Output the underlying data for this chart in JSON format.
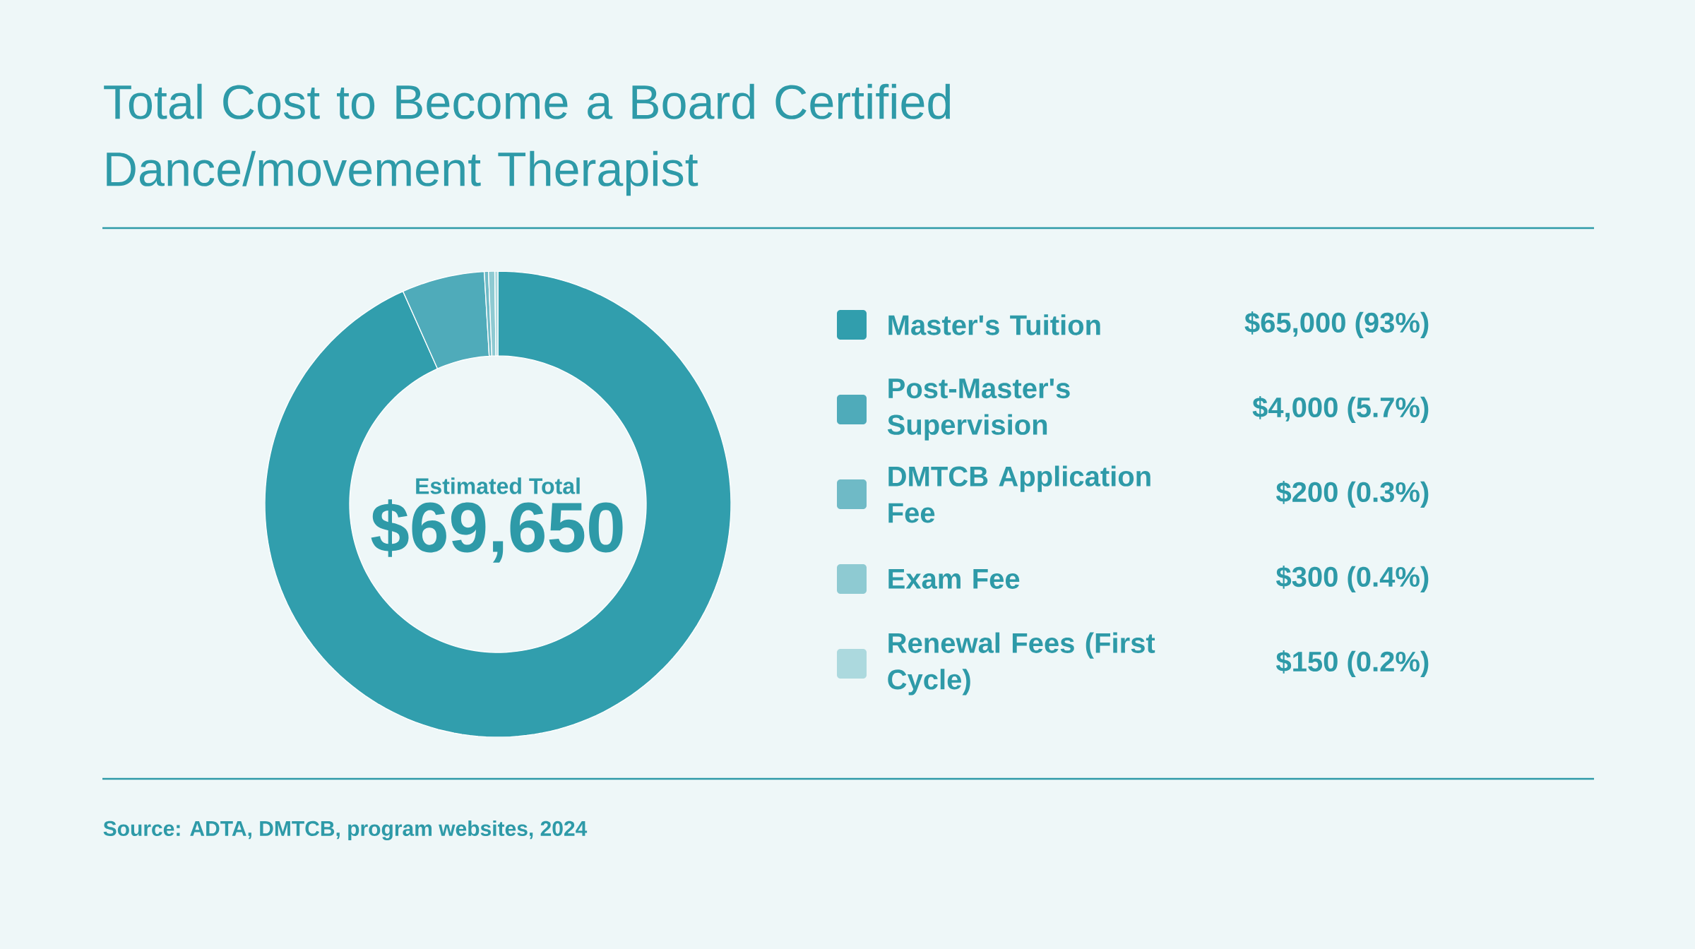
{
  "chart_data": {
    "type": "donut",
    "title": "Total Cost to Become a Board Certified Dance/movement Therapist",
    "categories": [
      "Master's Tuition",
      "Post-Master's Supervision",
      "DMTCB Application Fee",
      "Exam Fee",
      "Renewal Fees (First Cycle)"
    ],
    "values": [
      65000,
      4000,
      200,
      300,
      150
    ],
    "value_labels": [
      "$65,000 (93%)",
      "$4,000 (5.7%)",
      "$200 (0.3%)",
      "$300 (0.4%)",
      "$150 (0.2%)"
    ],
    "colors": [
      "#319ead",
      "#4fabba",
      "#6fbac6",
      "#8ecad2",
      "#acd9de"
    ],
    "legend": "right",
    "annotations": [
      "Estimated Total",
      "$69,650",
      "Source: ADTA, DMTCB, program websites, 2024"
    ]
  }
}
